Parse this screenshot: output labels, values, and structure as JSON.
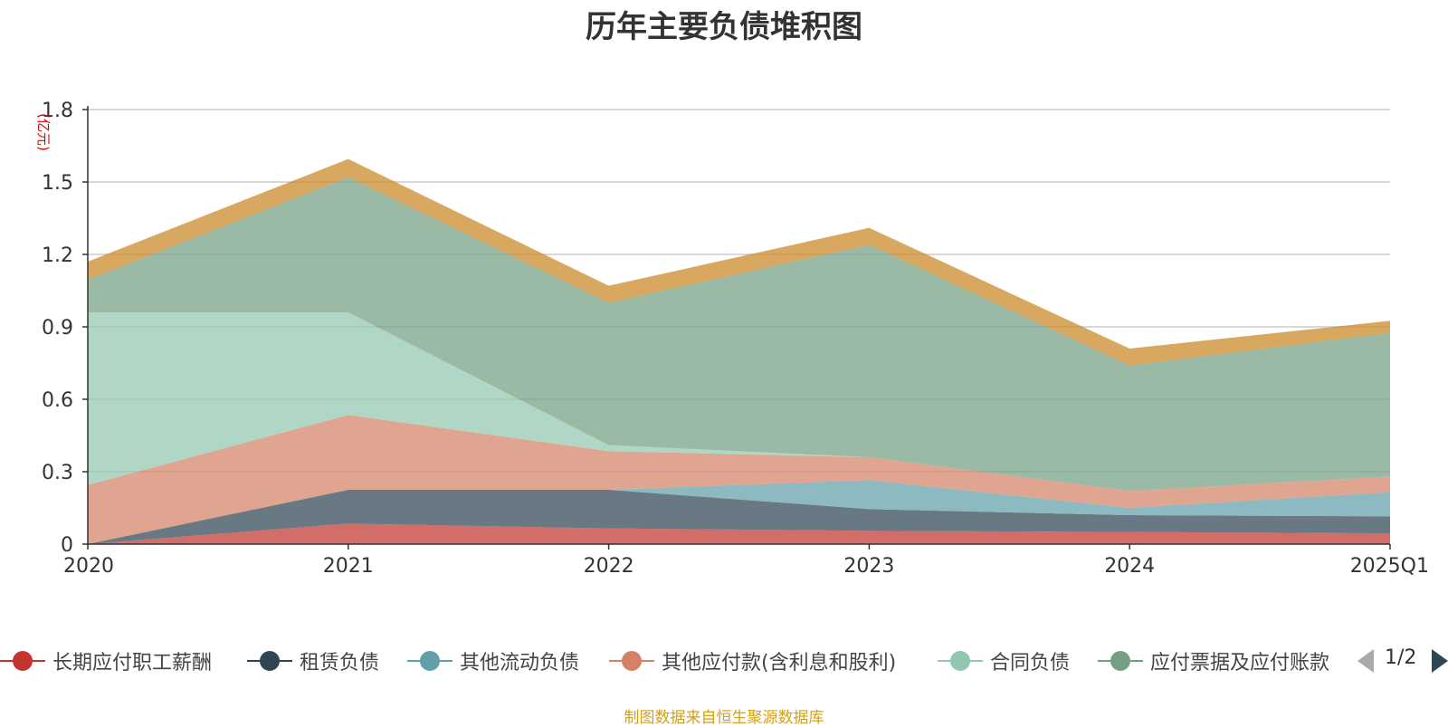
{
  "chart_data": {
    "type": "area",
    "stacked": true,
    "title": "历年主要负债堆积图",
    "unit_label": "(亿元)",
    "categories": [
      "2020",
      "2021",
      "2022",
      "2023",
      "2024",
      "2025Q1"
    ],
    "ylim": [
      0,
      1.8
    ],
    "yticks": [
      "0",
      "0.3",
      "0.6",
      "0.9",
      "1.2",
      "1.5",
      "1.8"
    ],
    "grid": true,
    "legend_position": "bottom",
    "series": [
      {
        "name": "长期应付职工薪酬",
        "color": "#c23531",
        "values": [
          0.0,
          0.085,
          0.065,
          0.055,
          0.05,
          0.045
        ]
      },
      {
        "name": "租赁负债",
        "color": "#2f4554",
        "values": [
          0.0,
          0.14,
          0.16,
          0.09,
          0.07,
          0.07
        ]
      },
      {
        "name": "其他流动负债",
        "color": "#61a0a8",
        "values": [
          0.0,
          0.0,
          0.0,
          0.12,
          0.03,
          0.1
        ]
      },
      {
        "name": "其他应付款(含利息和股利)",
        "color": "#d48265",
        "values": [
          0.245,
          0.31,
          0.16,
          0.095,
          0.07,
          0.065
        ]
      },
      {
        "name": "合同负债",
        "color": "#91c7ae",
        "values": [
          0.715,
          0.425,
          0.025,
          0.0,
          0.0,
          0.0
        ]
      },
      {
        "name": "应付票据及应付账款",
        "color": "#749f83",
        "values": [
          0.135,
          0.56,
          0.59,
          0.88,
          0.52,
          0.595
        ]
      },
      {
        "name": "",
        "color": "#ca8622",
        "values": [
          0.075,
          0.075,
          0.07,
          0.07,
          0.07,
          0.05
        ]
      }
    ]
  },
  "legend": {
    "items": [
      {
        "label": "长期应付职工薪酬",
        "color": "#c23531"
      },
      {
        "label": "租赁负债",
        "color": "#2f4554"
      },
      {
        "label": "其他流动负债",
        "color": "#61a0a8"
      },
      {
        "label": "其他应付款(含利息和股利)",
        "color": "#d48265"
      },
      {
        "label": "合同负债",
        "color": "#91c7ae"
      },
      {
        "label": "应付票据及应付账款",
        "color": "#749f83"
      }
    ],
    "page_indicator": "1/2"
  },
  "source_note": "制图数据来自恒生聚源数据库"
}
